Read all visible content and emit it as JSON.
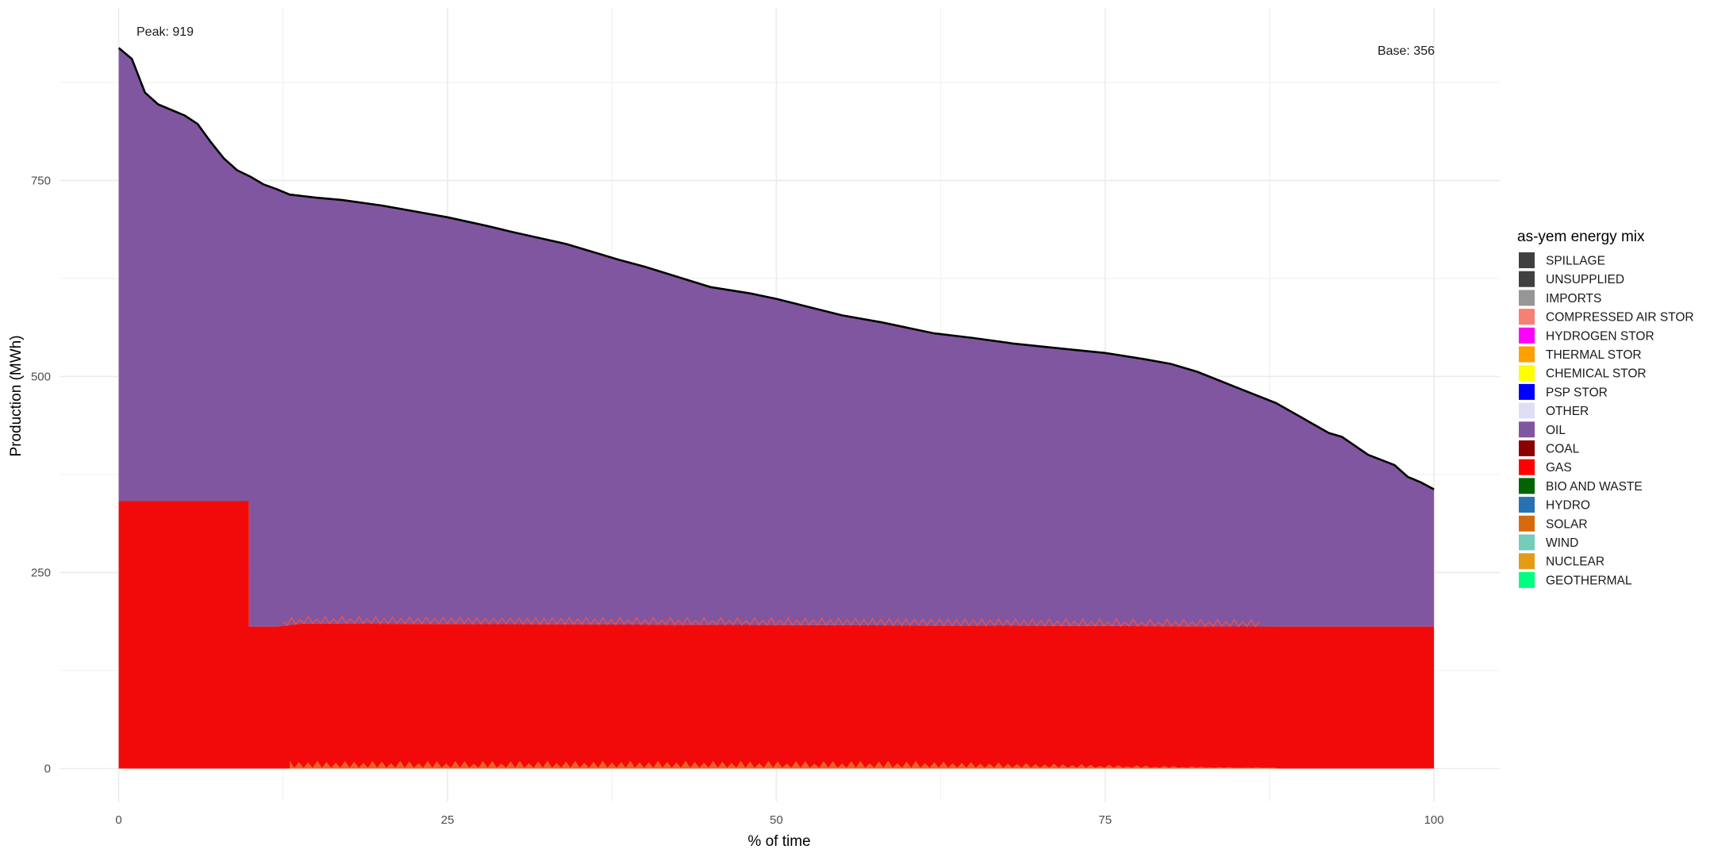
{
  "chart_data": {
    "type": "area",
    "title": "",
    "xlabel": "% of time",
    "ylabel": "Production (MWh)",
    "xlim": [
      -4.5,
      105
    ],
    "ylim": [
      -42,
      970
    ],
    "x_ticks": [
      0,
      25,
      50,
      75,
      100
    ],
    "y_ticks": [
      0,
      250,
      500,
      750
    ],
    "grid": true,
    "legend_position": "right",
    "legend_title": "as-yem energy mix",
    "legend": [
      {
        "name": "SPILLAGE",
        "color": "#404040"
      },
      {
        "name": "UNSUPPLIED",
        "color": "#404040"
      },
      {
        "name": "IMPORTS",
        "color": "#969696"
      },
      {
        "name": "COMPRESSED AIR STOR",
        "color": "#F88073"
      },
      {
        "name": "HYDROGEN STOR",
        "color": "#FF00FF"
      },
      {
        "name": "THERMAL STOR",
        "color": "#FF9F00"
      },
      {
        "name": "CHEMICAL STOR",
        "color": "#FFFF00"
      },
      {
        "name": "PSP STOR",
        "color": "#0000FF"
      },
      {
        "name": "OTHER",
        "color": "#DEDEF5"
      },
      {
        "name": "OIL",
        "color": "#8156A0"
      },
      {
        "name": "COAL",
        "color": "#8B0000"
      },
      {
        "name": "GAS",
        "color": "#FF0000"
      },
      {
        "name": "BIO AND WASTE",
        "color": "#006400"
      },
      {
        "name": "HYDRO",
        "color": "#2772B2"
      },
      {
        "name": "SOLAR",
        "color": "#D66B0D"
      },
      {
        "name": "WIND",
        "color": "#74CDB9"
      },
      {
        "name": "NUCLEAR",
        "color": "#E49C16"
      },
      {
        "name": "GEOTHERMAL",
        "color": "#00FF7F"
      }
    ],
    "annotations": {
      "peak": "Peak: 919",
      "base": "Base: 356"
    },
    "series": [
      {
        "name": "GAS",
        "color": "#F20A0A",
        "x": [
          0,
          9.9,
          9.9,
          12,
          14,
          88,
          100
        ],
        "values": [
          341,
          341,
          181,
          181,
          185,
          181,
          181
        ]
      },
      {
        "name": "OIL",
        "color": "#8156A0",
        "x": [
          0,
          1,
          2,
          3,
          4,
          5,
          6,
          7,
          8,
          9,
          10,
          11,
          12,
          13,
          15,
          17,
          20,
          22,
          25,
          28,
          30,
          34,
          38,
          40,
          45,
          48,
          50,
          55,
          58,
          62,
          65,
          68,
          72,
          75,
          78,
          80,
          82,
          85,
          88,
          90,
          92,
          93,
          95,
          97,
          98,
          99,
          100
        ],
        "total": [
          919,
          905,
          862,
          847,
          840,
          833,
          822,
          799,
          778,
          763,
          755,
          745,
          739,
          732,
          728,
          725,
          718,
          712,
          703,
          692,
          684,
          669,
          649,
          640,
          614,
          606,
          599,
          578,
          569,
          555,
          549,
          542,
          535,
          530,
          522,
          516,
          506,
          486,
          466,
          447,
          428,
          423,
          400,
          387,
          372,
          365,
          356
        ]
      }
    ],
    "solar_band": {
      "name": "SOLAR",
      "color": "#E8732A",
      "x_range": [
        13,
        88
      ],
      "max_value": 10
    }
  }
}
